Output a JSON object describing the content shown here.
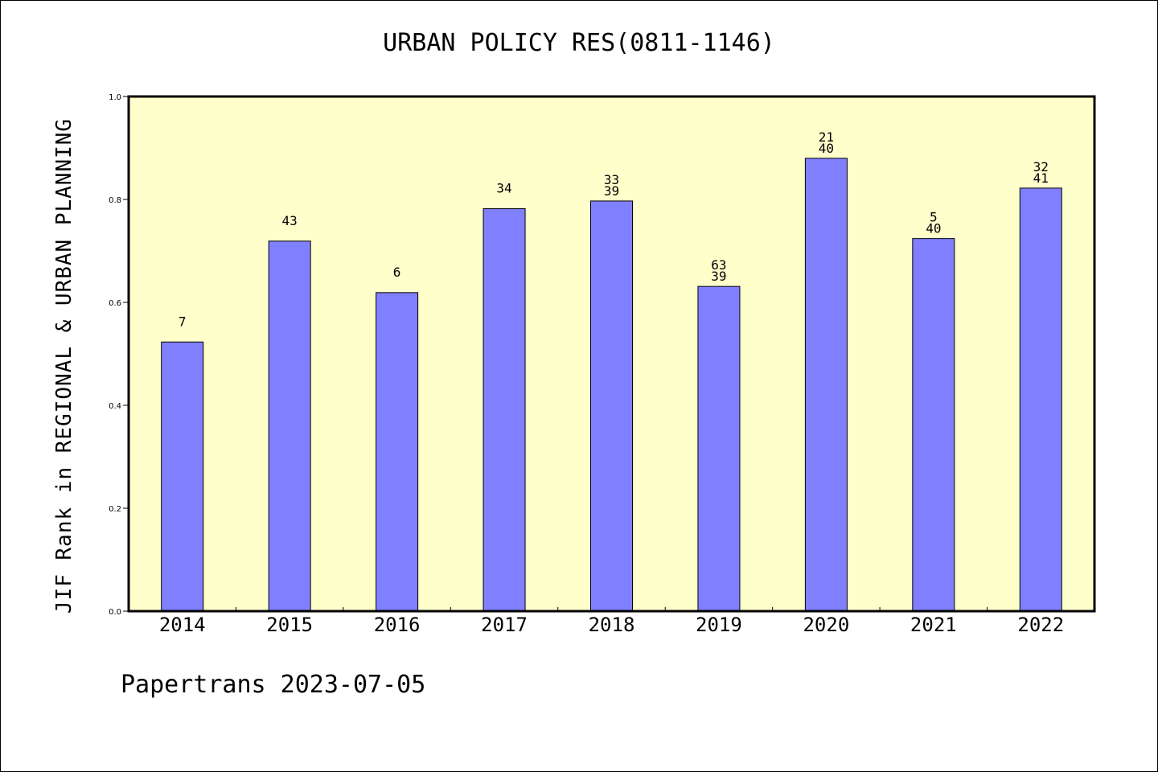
{
  "title": "URBAN POLICY RES(0811-1146)",
  "ylabel": "JIF Rank in REGIONAL & URBAN PLANNING",
  "footer": "Papertrans 2023-07-05",
  "colors": {
    "plot_background": "#ffffcc",
    "bar_fill": "#8080ff",
    "bar_stroke": "#000000"
  },
  "chart_data": {
    "type": "bar",
    "categories": [
      "2014",
      "2015",
      "2016",
      "2017",
      "2018",
      "2019",
      "2020",
      "2021",
      "2022"
    ],
    "values": [
      0.523,
      0.719,
      0.619,
      0.782,
      0.797,
      0.631,
      0.88,
      0.724,
      0.822
    ],
    "data_labels": [
      [
        "7"
      ],
      [
        "43"
      ],
      [
        "6"
      ],
      [
        "34"
      ],
      [
        "33",
        "39"
      ],
      [
        "63",
        "39"
      ],
      [
        "21",
        "40"
      ],
      [
        "5",
        "40"
      ],
      [
        "32",
        "41"
      ]
    ],
    "ylim": [
      0,
      1.0
    ],
    "yticks": [
      "0.0",
      "0.2",
      "0.4",
      "0.6",
      "0.8",
      "1.0"
    ],
    "grid": false,
    "legend": false
  }
}
